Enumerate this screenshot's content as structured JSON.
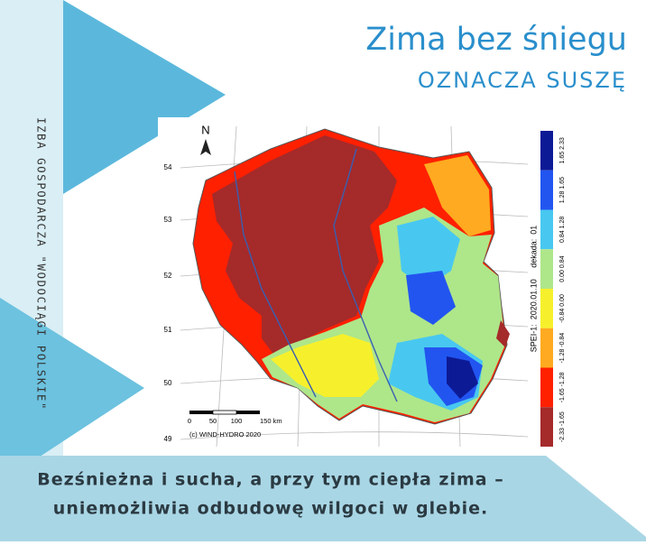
{
  "header": {
    "title": "Zima bez śniegu",
    "subtitle": "OZNACZA SUSZĘ"
  },
  "side_text": "IZBA GOSPODARCZA \"WODOCIĄGI POLSKIE\"",
  "map": {
    "north": "N",
    "latitude_labels": [
      54,
      53,
      52,
      51,
      50,
      49
    ],
    "scale_labels": [
      "0",
      "50",
      "100",
      "150 km"
    ],
    "copyright": "(c) WIND-HYDRO 2020",
    "legend": {
      "title": "SPEI-1:  2020.01.10     dekada:  01",
      "classes": [
        {
          "label": "1.65  2.33",
          "color": "#0d1a96"
        },
        {
          "label": "1.28  1.65",
          "color": "#2255f0"
        },
        {
          "label": "0.84  1.28",
          "color": "#48c8f0"
        },
        {
          "label": "0.00  0.84",
          "color": "#aee68a"
        },
        {
          "label": "-0.84  0.00",
          "color": "#f6f02c"
        },
        {
          "label": "-1.28  -0.84",
          "color": "#ffaa20"
        },
        {
          "label": "-1.65  -1.28",
          "color": "#ff2000"
        },
        {
          "label": "-2.33  -1.65",
          "color": "#a52a2a"
        }
      ]
    }
  },
  "caption": [
    "Bezśnieżna i sucha, a przy tym ciepła zima –",
    "uniemożliwia odbudowę wilgoci w glebie."
  ]
}
